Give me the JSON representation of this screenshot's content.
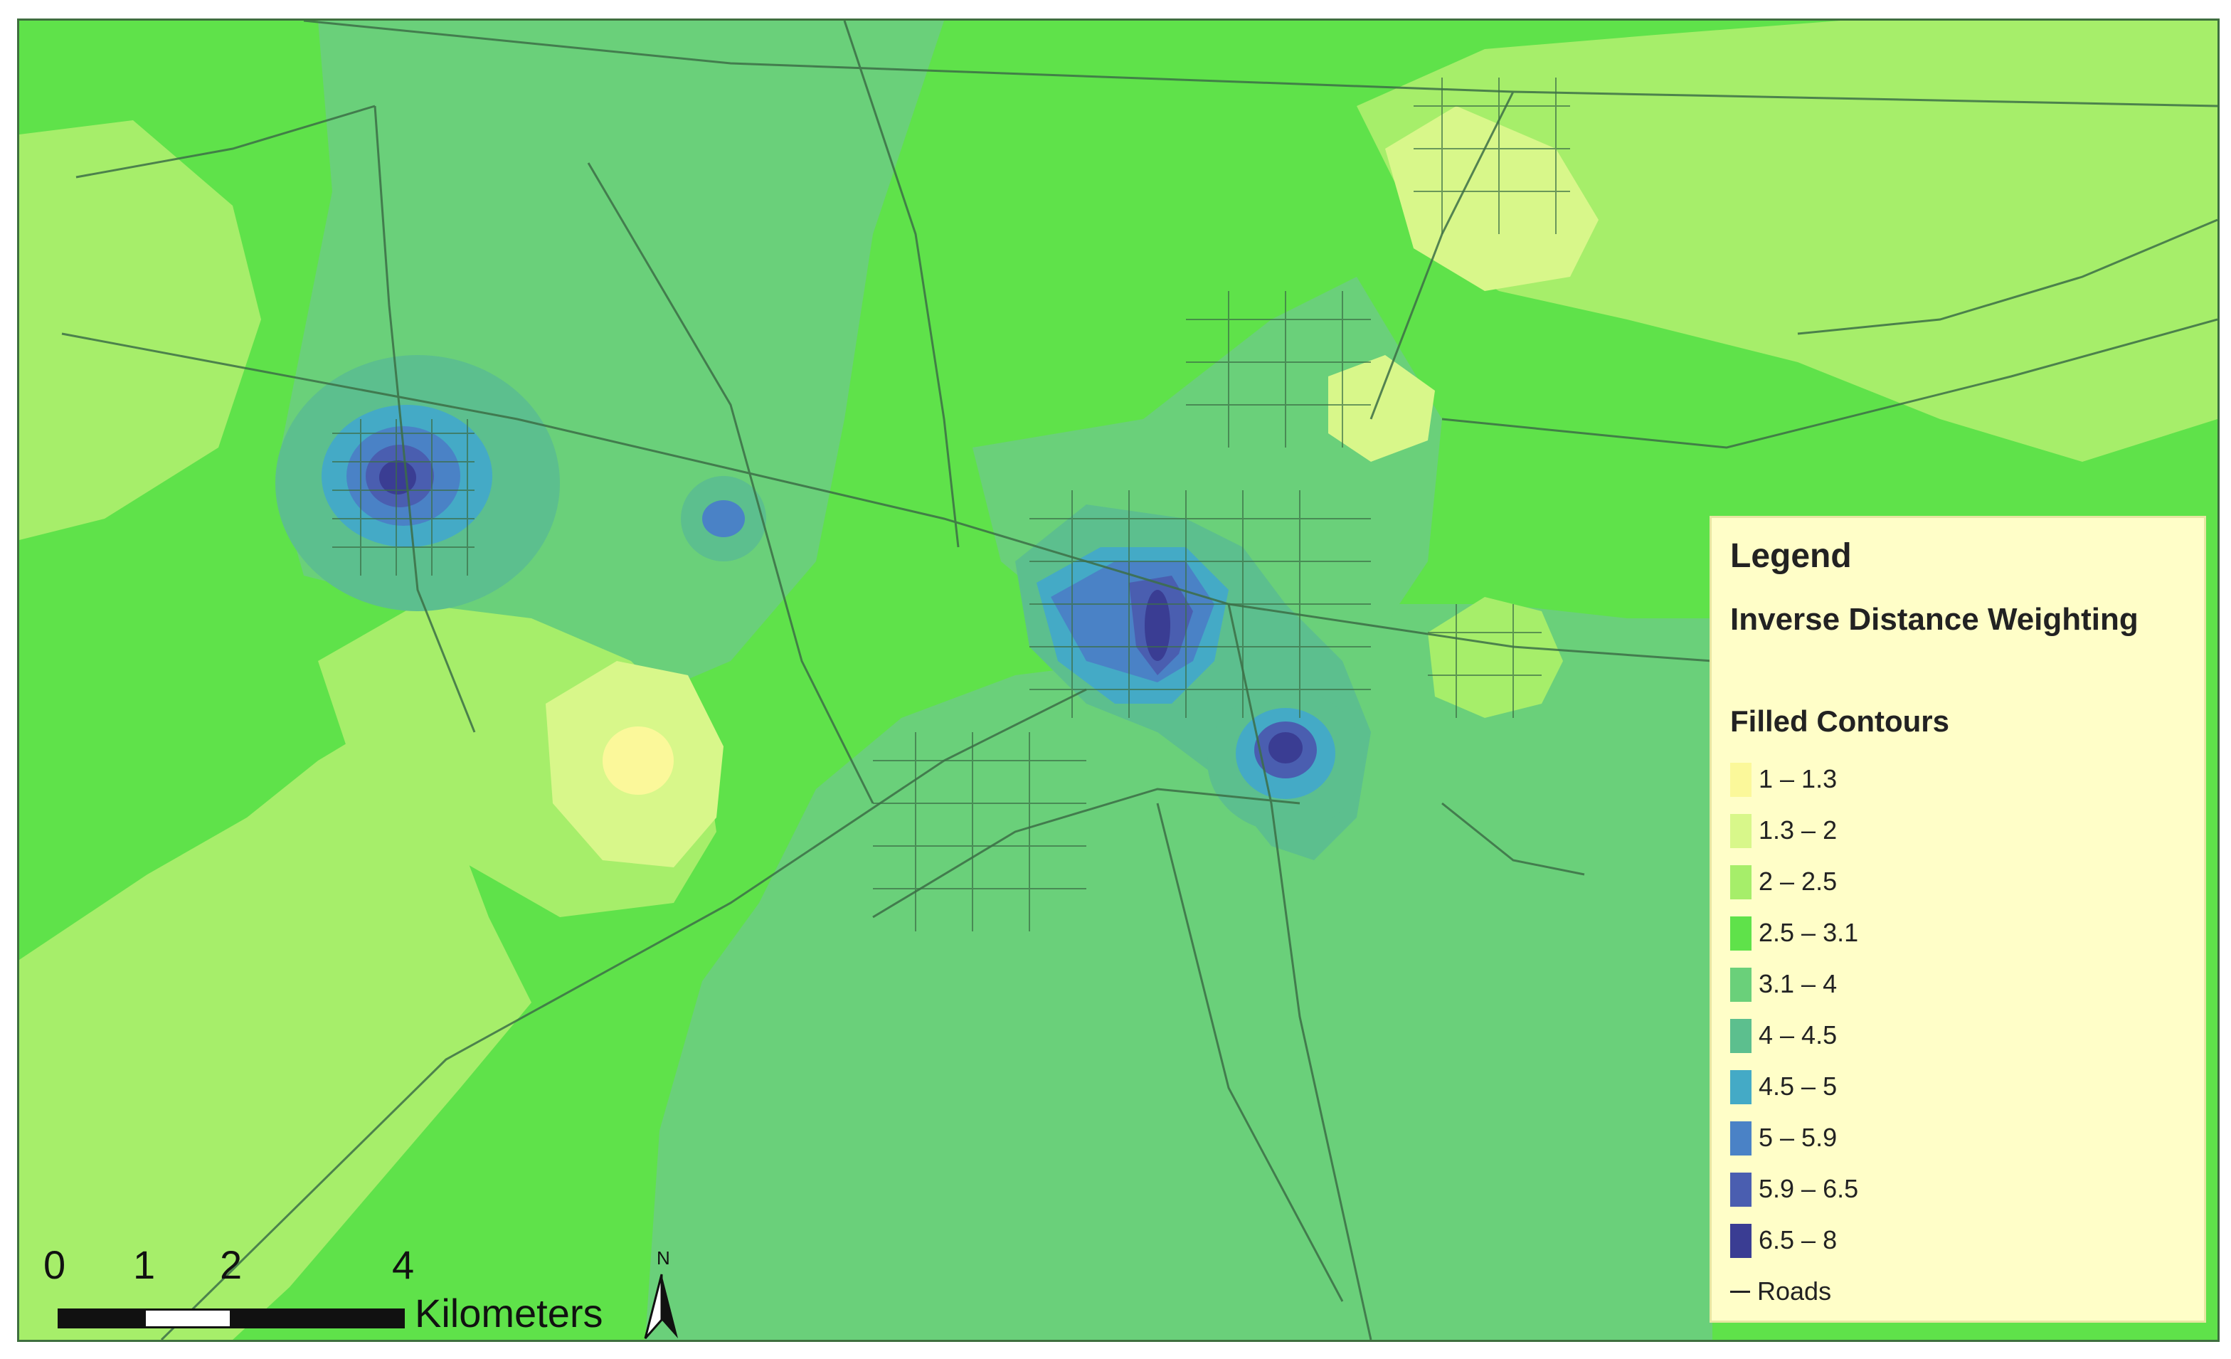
{
  "legend": {
    "title": "Legend",
    "subtitle": "Inverse Distance Weighting",
    "section_title": "Filled Contours",
    "classes": [
      {
        "label": "1 – 1.3",
        "color": "#fbf89a"
      },
      {
        "label": "1.3 – 2",
        "color": "#d8f78a"
      },
      {
        "label": "2 – 2.5",
        "color": "#a6ee6a"
      },
      {
        "label": "2.5 – 3.1",
        "color": "#5fe24a"
      },
      {
        "label": "3.1 – 4",
        "color": "#6ad07a"
      },
      {
        "label": "4 – 4.5",
        "color": "#5cbf8e"
      },
      {
        "label": "4.5 – 5",
        "color": "#44aac6"
      },
      {
        "label": "5 – 5.9",
        "color": "#4a82c6"
      },
      {
        "label": "5.9 – 6.5",
        "color": "#4a5eb0"
      },
      {
        "label": "6.5 – 8",
        "color": "#3a3d93"
      }
    ],
    "roads_label": "Roads"
  },
  "scalebar": {
    "ticks": [
      "0",
      "1",
      "2",
      "4"
    ],
    "unit": "Kilometers"
  },
  "north_arrow": {
    "label": "N"
  }
}
